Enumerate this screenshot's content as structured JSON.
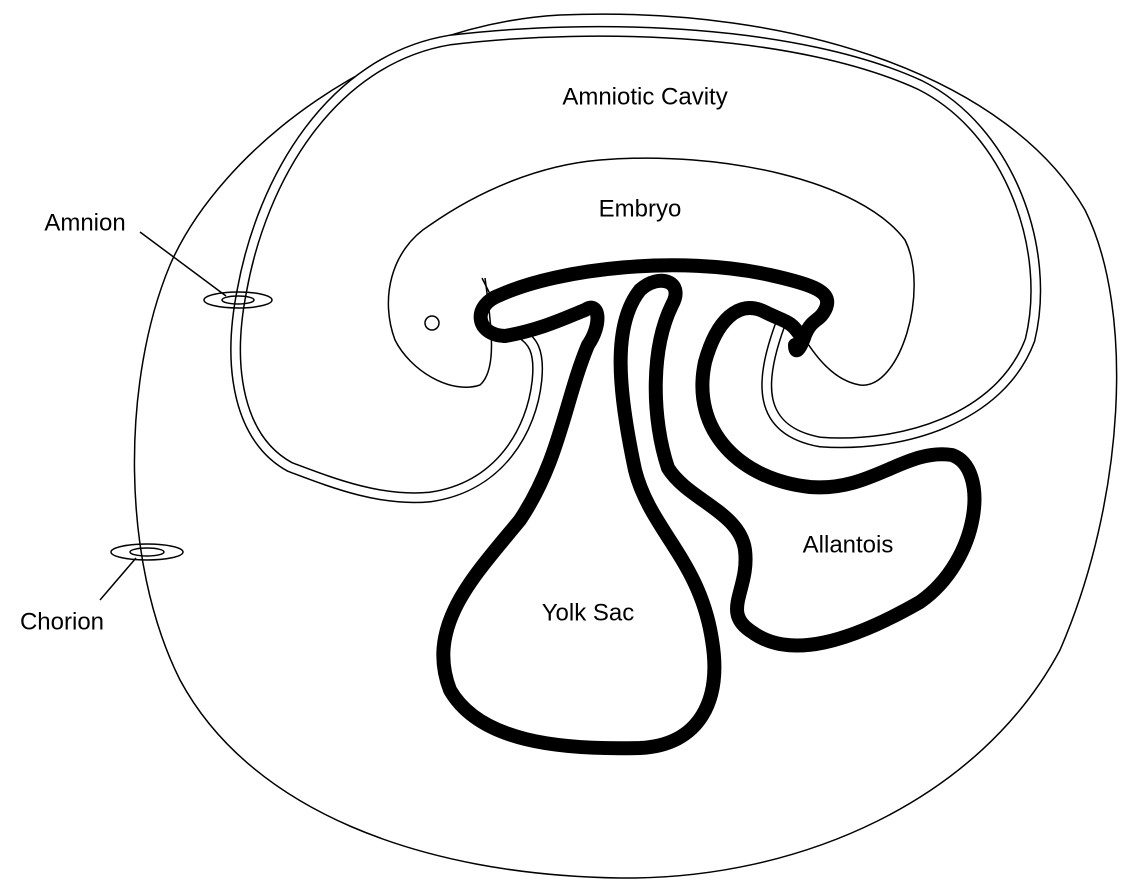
{
  "labels": {
    "amniotic_cavity": "Amniotic Cavity",
    "embryo": "Embryo",
    "amnion": "Amnion",
    "chorion": "Chorion",
    "yolk_sac": "Yolk Sac",
    "allantois": "Allantois"
  }
}
